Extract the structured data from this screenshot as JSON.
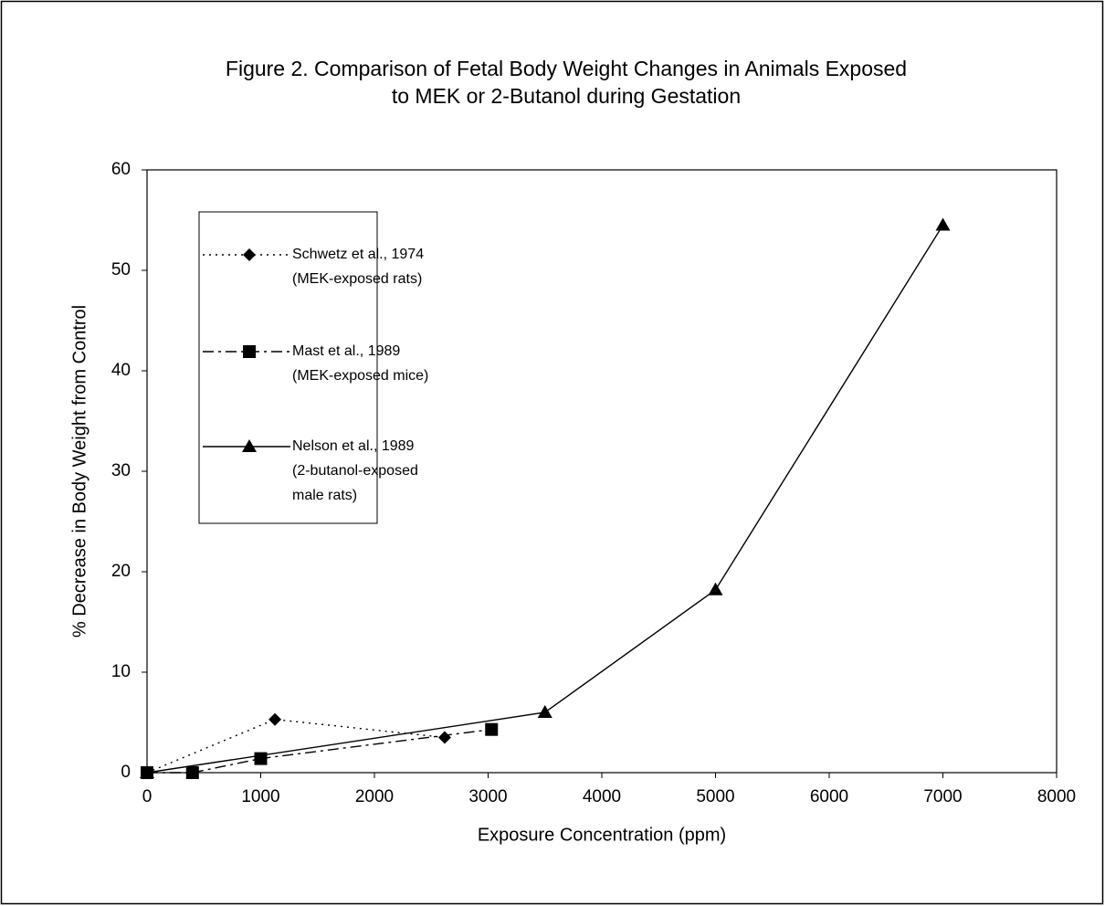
{
  "chart_data": {
    "type": "line",
    "title": "Figure 2.  Comparison of Fetal Body Weight Changes in Animals Exposed\nto MEK or 2-Butanol during Gestation",
    "x_label": "Exposure Concentration (ppm)",
    "y_label": "% Decrease in Body Weight from Control",
    "xlim": [
      0,
      8000
    ],
    "xticks": [
      0,
      1000,
      2000,
      3000,
      4000,
      5000,
      6000,
      7000,
      8000
    ],
    "ylim": [
      0,
      60
    ],
    "yticks": [
      0,
      10,
      20,
      30,
      40,
      50,
      60
    ],
    "grid": false,
    "legend": "upper left",
    "series": [
      {
        "name": "Schwetz et al., 1974\n(MEK-exposed rats)",
        "color": "#000000",
        "line_style": "dotted",
        "marker": "diamond",
        "x": [
          0,
          1125,
          2618
        ],
        "values": [
          0,
          5.3,
          3.5
        ]
      },
      {
        "name": "Mast et al., 1989\n(MEK-exposed mice)",
        "color": "#000000",
        "line_style": "dashdot",
        "marker": "square",
        "x": [
          0,
          400,
          1000,
          3030
        ],
        "values": [
          0,
          0,
          1.4,
          4.3
        ]
      },
      {
        "name": "Nelson et al., 1989\n(2-butanol-exposed\nmale rats)",
        "color": "#000000",
        "line_style": "solid",
        "marker": "triangle",
        "x": [
          0,
          3500,
          5000,
          7000
        ],
        "values": [
          0,
          6.0,
          18.2,
          54.5
        ]
      }
    ]
  }
}
